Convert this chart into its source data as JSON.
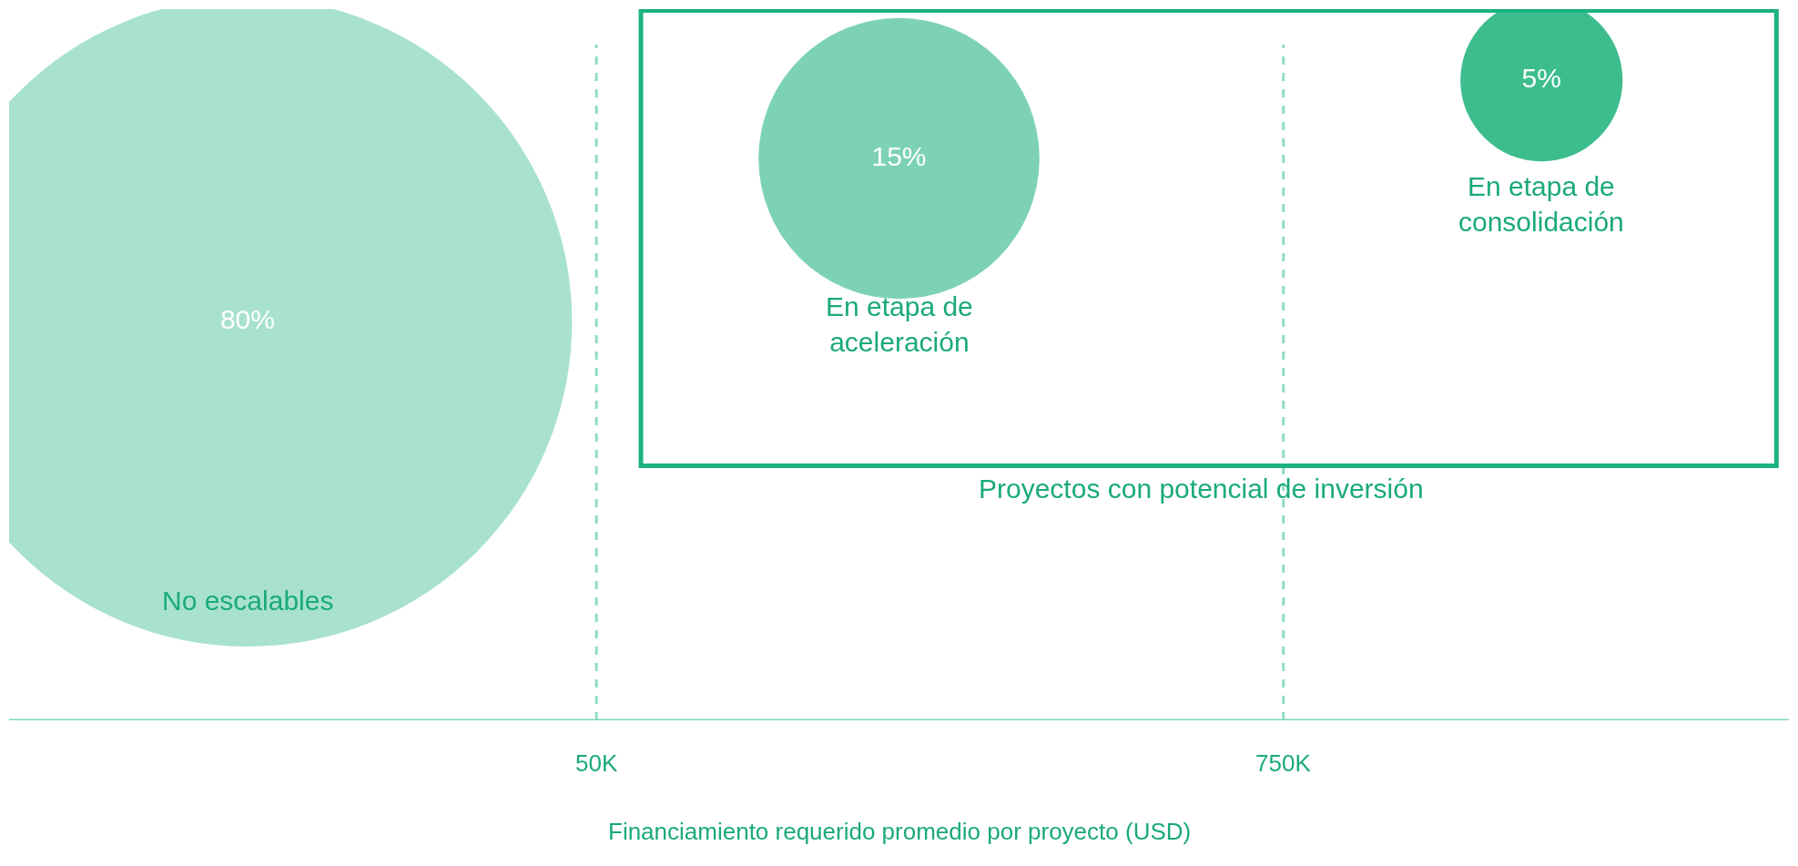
{
  "chart_data": {
    "type": "other",
    "xlabel": "Financiamiento requerido promedio por proyecto (USD)",
    "categories": [
      "No escalables",
      "En etapa de aceleración",
      "En etapa de consolidación"
    ],
    "values": [
      80,
      15,
      5
    ],
    "colors": [
      "#a8e2cf",
      "#7dd2b6",
      "#3dbd8e"
    ],
    "value_labels": [
      "80%",
      "15%",
      "5%"
    ],
    "annotations": [
      "50K",
      "750K",
      "Proyectos con potencial de inversión"
    ]
  }
}
